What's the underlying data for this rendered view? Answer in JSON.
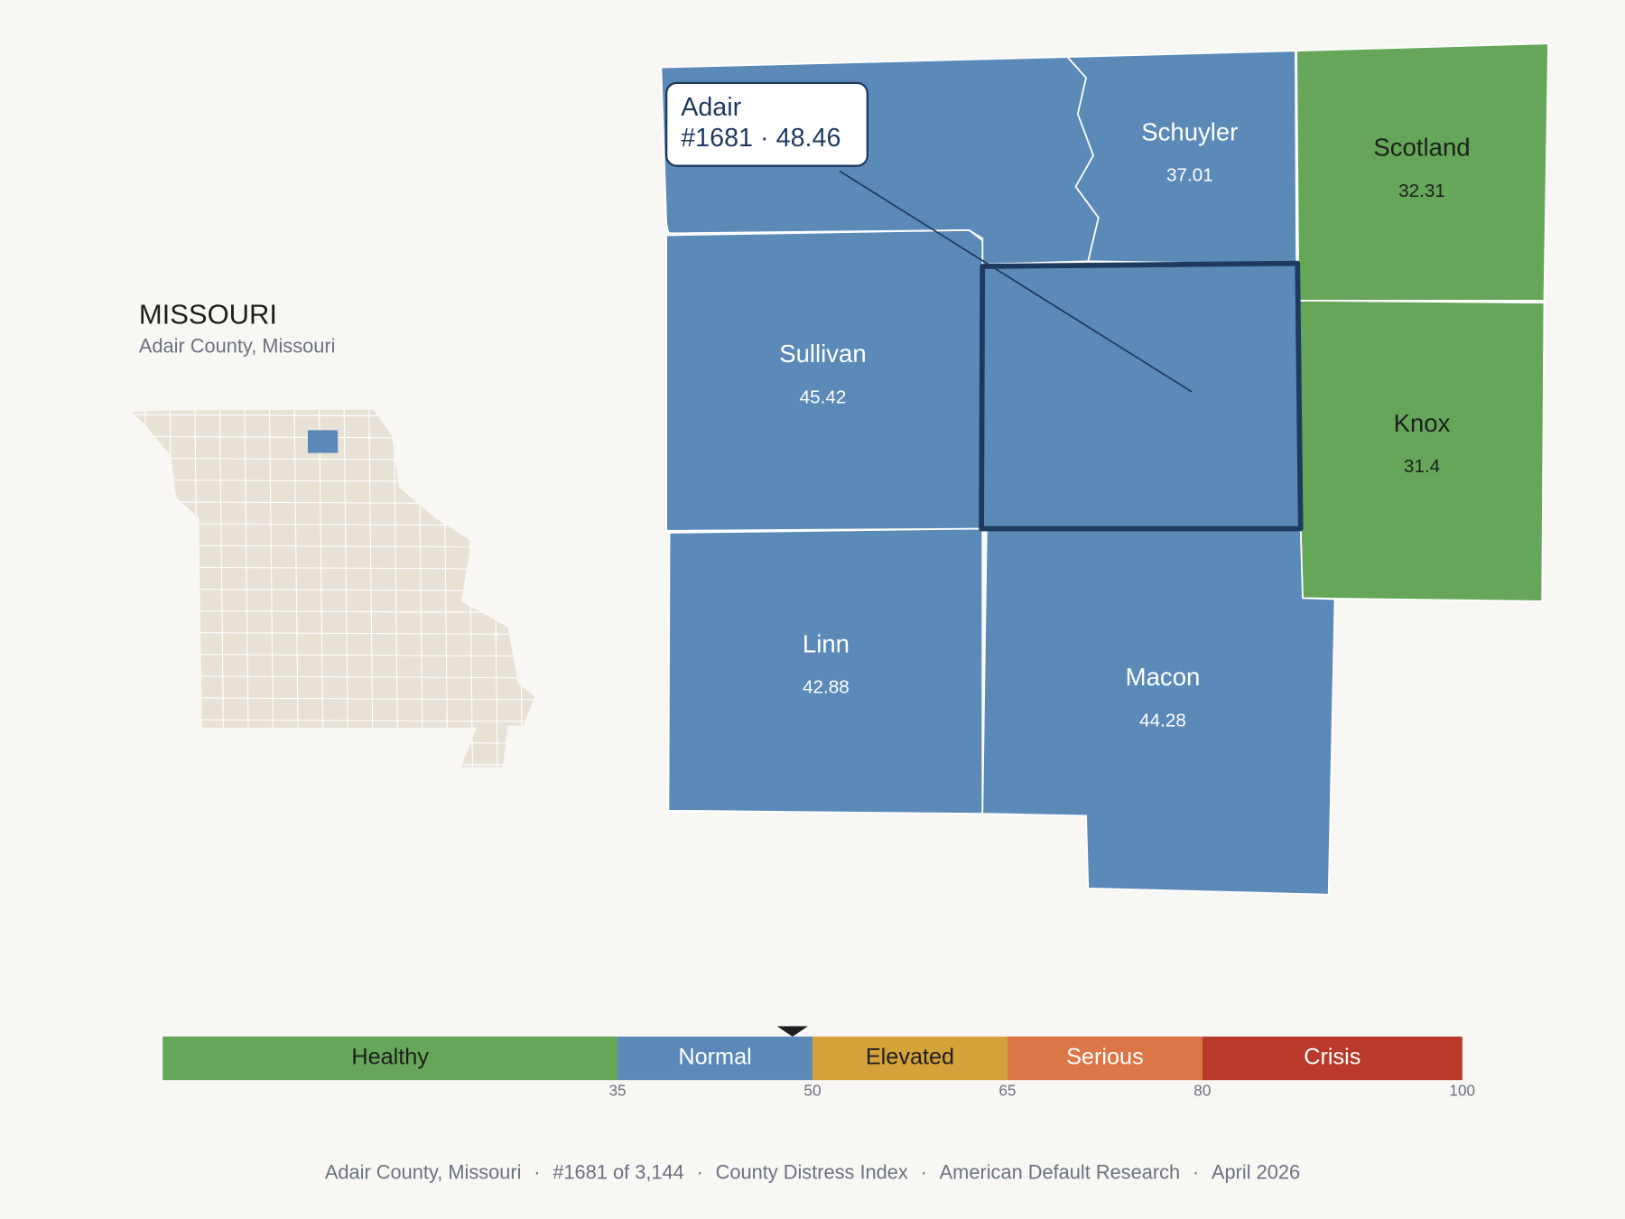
{
  "inset": {
    "title": "MISSOURI",
    "subtitle": "Adair County, Missouri"
  },
  "tooltip": {
    "name": "Adair",
    "rank": "#1681",
    "separator": "·",
    "score": 48.46
  },
  "counties": [
    {
      "name": "Schuyler",
      "value": 37.01
    },
    {
      "name": "Scotland",
      "value": 32.31
    },
    {
      "name": "Knox",
      "value": 31.4
    },
    {
      "name": "Sullivan",
      "value": 45.42
    },
    {
      "name": "Linn",
      "value": 42.88
    },
    {
      "name": "Macon",
      "value": 44.28
    }
  ],
  "scale": {
    "lim": [
      0,
      100
    ],
    "ticks": [
      35,
      50,
      65,
      80,
      100
    ],
    "bands": [
      {
        "name": "Healthy",
        "color": "#66a659"
      },
      {
        "name": "Normal",
        "color": "#5b8ab9"
      },
      {
        "name": "Elevated",
        "color": "#d4a13a"
      },
      {
        "name": "Serious",
        "color": "#dc7646"
      },
      {
        "name": "Crisis",
        "color": "#b93a2b"
      }
    ]
  },
  "footer": {
    "separator": "·",
    "items": [
      "Adair County, Missouri",
      "#1681 of 3,144",
      "County Distress Index",
      "American Default Research",
      "April 2026"
    ]
  }
}
